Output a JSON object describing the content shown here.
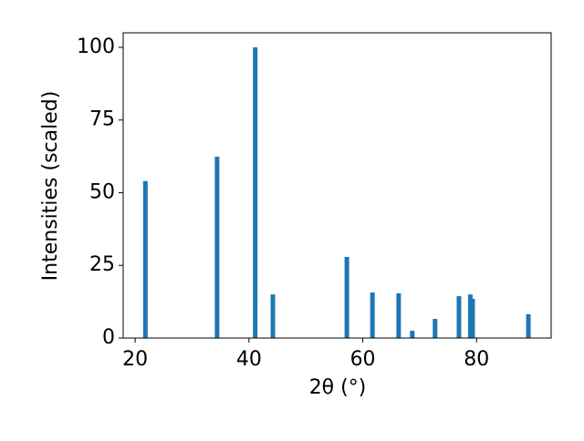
{
  "chart_data": {
    "type": "bar",
    "x_label": "2θ (°)",
    "y_label": "Intensities (scaled)",
    "x": [
      21.8,
      34.4,
      41.1,
      44.2,
      57.2,
      61.7,
      66.3,
      68.7,
      72.7,
      76.9,
      78.9,
      79.3,
      89.1
    ],
    "values": [
      54,
      62.4,
      100,
      15,
      27.9,
      15.7,
      15.4,
      2.5,
      6.6,
      14.4,
      15,
      13.5,
      8.2
    ],
    "color": "#1f77b4",
    "xlim": [
      17.9,
      93.1
    ],
    "xticks": [
      20,
      40,
      60,
      80
    ],
    "ylim": [
      0,
      105
    ],
    "yticks": [
      0,
      25,
      50,
      75,
      100
    ]
  }
}
